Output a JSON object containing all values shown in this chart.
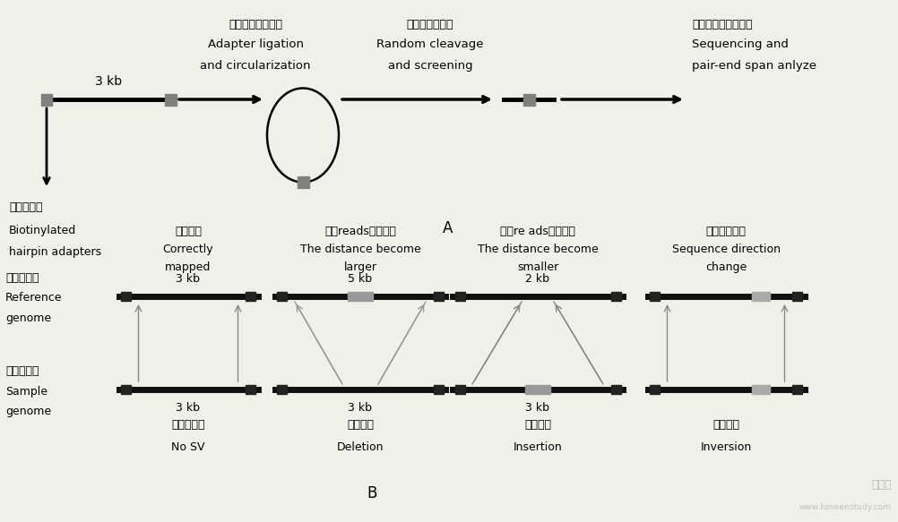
{
  "bg_color": "#f0f0eb",
  "title_A": "A",
  "title_B": "B",
  "watermark": "www.lunwenstudy.com",
  "watermark2": "学术堂",
  "section_A": {
    "dna_label": "3 kb",
    "step1_cn": "生物素标记并环化",
    "step1_en1": "Adapter ligation",
    "step1_en2": "and circularization",
    "step2_cn": "随机剪切并筛选",
    "step2_en1": "Random cleavage",
    "step2_en2": "and screening",
    "step3_cn": "测序与双端分布分析",
    "step3_en1": "Sequencing and",
    "step3_en2": "pair-end span anlyze",
    "bio_cn": "生物素标记",
    "bio_en1": "Biotinylated",
    "bio_en2": "hairpin adapters"
  },
  "section_B": {
    "ref_cn": "参考基因组",
    "ref_en1": "Reference",
    "ref_en2": "genome",
    "samp_cn": "样本基因组",
    "samp_en1": "Sample",
    "samp_en2": "genome",
    "cols": [
      {
        "top_cn": "正常对比",
        "top_en1": "Correctly",
        "top_en2": "mapped",
        "ref_dist": "3 kb",
        "samp_dist": "3 kb",
        "bot_cn": "无结构变异",
        "bot_en": "No SV",
        "type": "normal"
      },
      {
        "top_cn": "两端reads距离变大",
        "top_en1": "The distance become",
        "top_en2": "larger",
        "ref_dist": "5 kb",
        "samp_dist": "3 kb",
        "bot_cn": "缺失变异",
        "bot_en": "Deletion",
        "type": "deletion"
      },
      {
        "top_cn": "两端re ads距离变小",
        "top_en1": "The distance become",
        "top_en2": "smaller",
        "ref_dist": "2 kb",
        "samp_dist": "3 kb",
        "bot_cn": "插入变异",
        "bot_en": "Insertion",
        "type": "insertion"
      },
      {
        "top_cn": "序列方向改变",
        "top_en1": "Sequence direction",
        "top_en2": "change",
        "ref_dist": "",
        "samp_dist": "",
        "bot_cn": "倒位变异",
        "bot_en": "Inversion",
        "type": "inversion"
      }
    ]
  }
}
